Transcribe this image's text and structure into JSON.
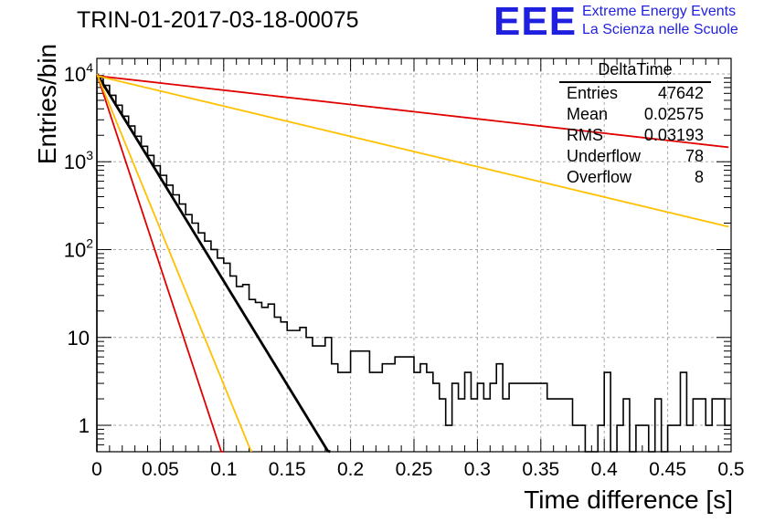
{
  "header": {
    "title": "TRIN-01-2017-03-18-00075",
    "logo_text": "EEE",
    "org_line1": "Extreme Energy Events",
    "org_line2": "La Scienza nelle Scuole"
  },
  "stats_box": {
    "title": "DeltaTime",
    "rows": [
      {
        "label": "Entries",
        "value": "47642"
      },
      {
        "label": "Mean",
        "value": "0.02575"
      },
      {
        "label": "RMS",
        "value": "0.03193"
      },
      {
        "label": "Underflow",
        "value": "78"
      },
      {
        "label": "Overflow",
        "value": "8"
      }
    ]
  },
  "chart_data": {
    "type": "bar",
    "title": "TRIN-01-2017-03-18-00075",
    "xlabel": "Time difference [s]",
    "ylabel": "Entries/bin",
    "xlim": [
      0,
      0.5
    ],
    "ylim": [
      0.5,
      15000
    ],
    "yscale": "log",
    "grid": true,
    "x_ticks": [
      "0",
      "0.05",
      "0.1",
      "0.15",
      "0.2",
      "0.25",
      "0.3",
      "0.35",
      "0.4",
      "0.45",
      "0.5"
    ],
    "y_ticks": [
      {
        "value": 1,
        "label": "1"
      },
      {
        "value": 10,
        "label": "10"
      },
      {
        "value": 100,
        "label": "10^2"
      },
      {
        "value": 1000,
        "label": "10^3"
      },
      {
        "value": 10000,
        "label": "10^4"
      }
    ],
    "histogram": {
      "bin_width": 0.005,
      "values": [
        9500,
        7400,
        5700,
        4400,
        3300,
        2550,
        1950,
        1500,
        1180,
        900,
        700,
        540,
        420,
        330,
        250,
        200,
        155,
        125,
        100,
        80,
        70,
        50,
        38,
        40,
        27,
        25,
        22,
        24,
        17,
        15,
        12,
        12,
        13,
        10,
        8,
        8,
        10,
        5,
        4,
        4,
        7,
        7,
        7,
        4,
        4,
        5,
        5,
        6,
        6,
        6,
        4,
        5,
        4,
        3,
        2,
        1,
        3,
        2,
        4,
        2,
        3,
        2,
        3,
        5,
        2,
        3,
        3,
        3,
        3,
        3,
        3,
        2,
        2,
        2,
        2,
        1,
        1,
        0.5,
        0.5,
        1,
        4,
        0.5,
        1,
        2,
        0.5,
        1,
        1,
        0.5,
        2,
        0.5,
        1,
        1,
        4,
        1,
        2,
        2,
        1,
        2,
        2,
        1
      ]
    },
    "fits": [
      {
        "color": "#000000",
        "y0": 10000,
        "slope_per_s": -54.3
      },
      {
        "color": "#e00000",
        "y0": 10000,
        "slope_per_s": -101
      },
      {
        "color": "#ffc000",
        "y0": 10000,
        "slope_per_s": -81.4
      },
      {
        "color": "#e00000",
        "y0": 9500,
        "slope_per_s": -3.76
      },
      {
        "color": "#ffc000",
        "y0": 9500,
        "slope_per_s": -7.94
      }
    ]
  }
}
